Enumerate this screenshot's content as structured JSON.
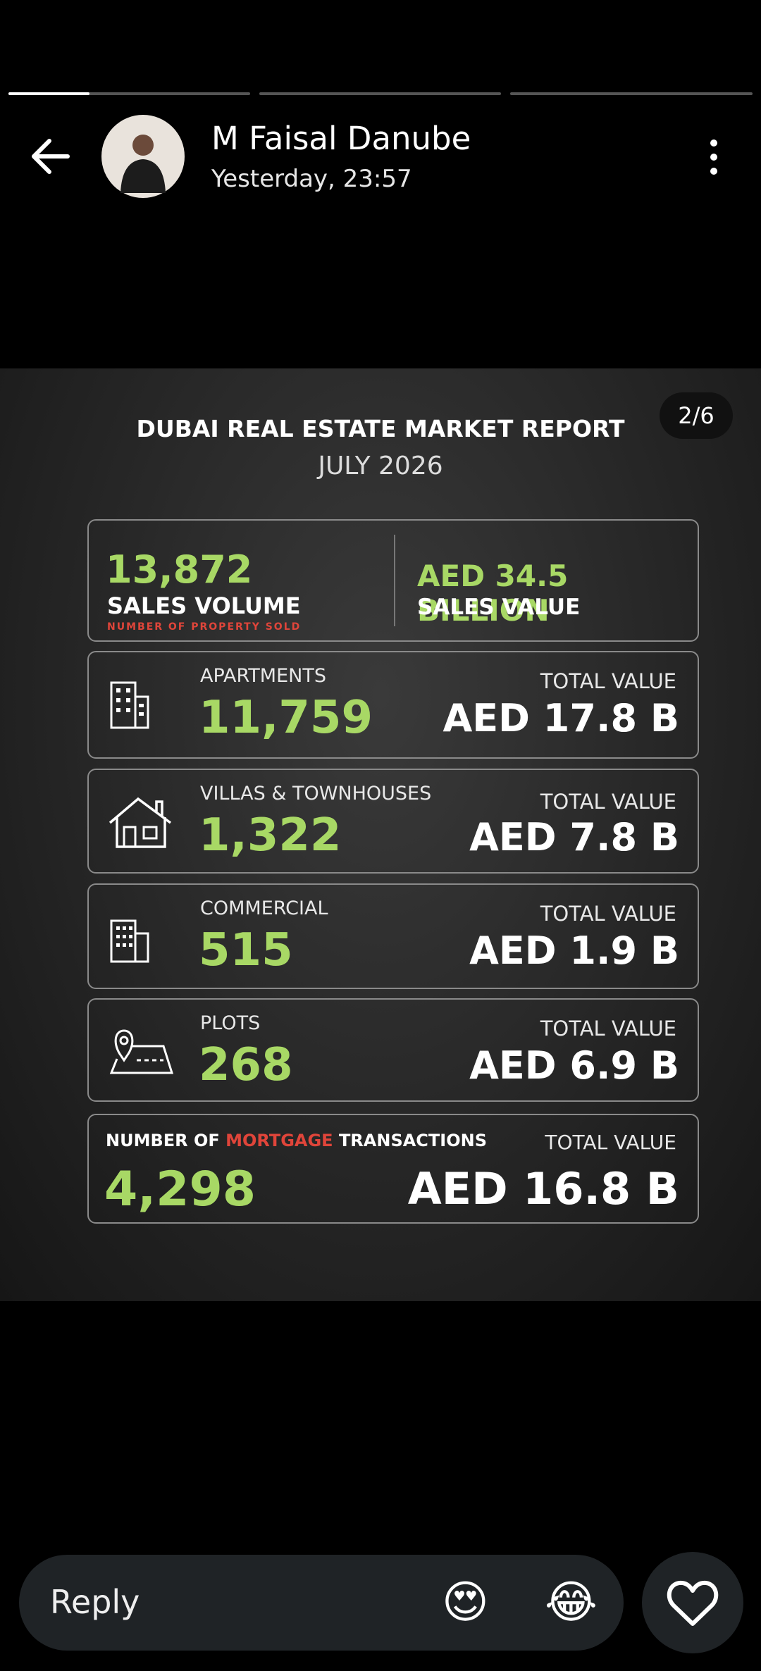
{
  "header": {
    "name": "M Faisal Danube",
    "time": "Yesterday, 23:57"
  },
  "report": {
    "page_indicator": "2/6",
    "title": "DUBAI REAL ESTATE MARKET REPORT",
    "subtitle": "JULY 2026",
    "summary": {
      "volume": "13,872",
      "volume_label": "SALES VOLUME",
      "volume_note": "NUMBER OF PROPERTY SOLD",
      "value": "AED 34.5 BILLION",
      "value_label": "SALES VALUE"
    },
    "rows": [
      {
        "label": "APARTMENTS",
        "count": "11,759",
        "value_label": "TOTAL VALUE",
        "value": "AED 17.8 B"
      },
      {
        "label": "VILLAS & TOWNHOUSES",
        "count": "1,322",
        "value_label": "TOTAL VALUE",
        "value": "AED 7.8 B"
      },
      {
        "label": "COMMERCIAL",
        "count": "515",
        "value_label": "TOTAL VALUE",
        "value": "AED 1.9 B"
      },
      {
        "label": "PLOTS",
        "count": "268",
        "value_label": "TOTAL VALUE",
        "value": "AED 6.9 B"
      }
    ],
    "mortgage": {
      "label_start": "NUMBER OF",
      "label_highlight": "MORTGAGE",
      "label_end": "TRANSACTIONS",
      "count": "4,298",
      "value_label": "TOTAL VALUE",
      "value": "AED 16.8 B"
    }
  },
  "reply": {
    "placeholder": "Reply",
    "emoji_1": "😍",
    "emoji_2": "😂"
  }
}
